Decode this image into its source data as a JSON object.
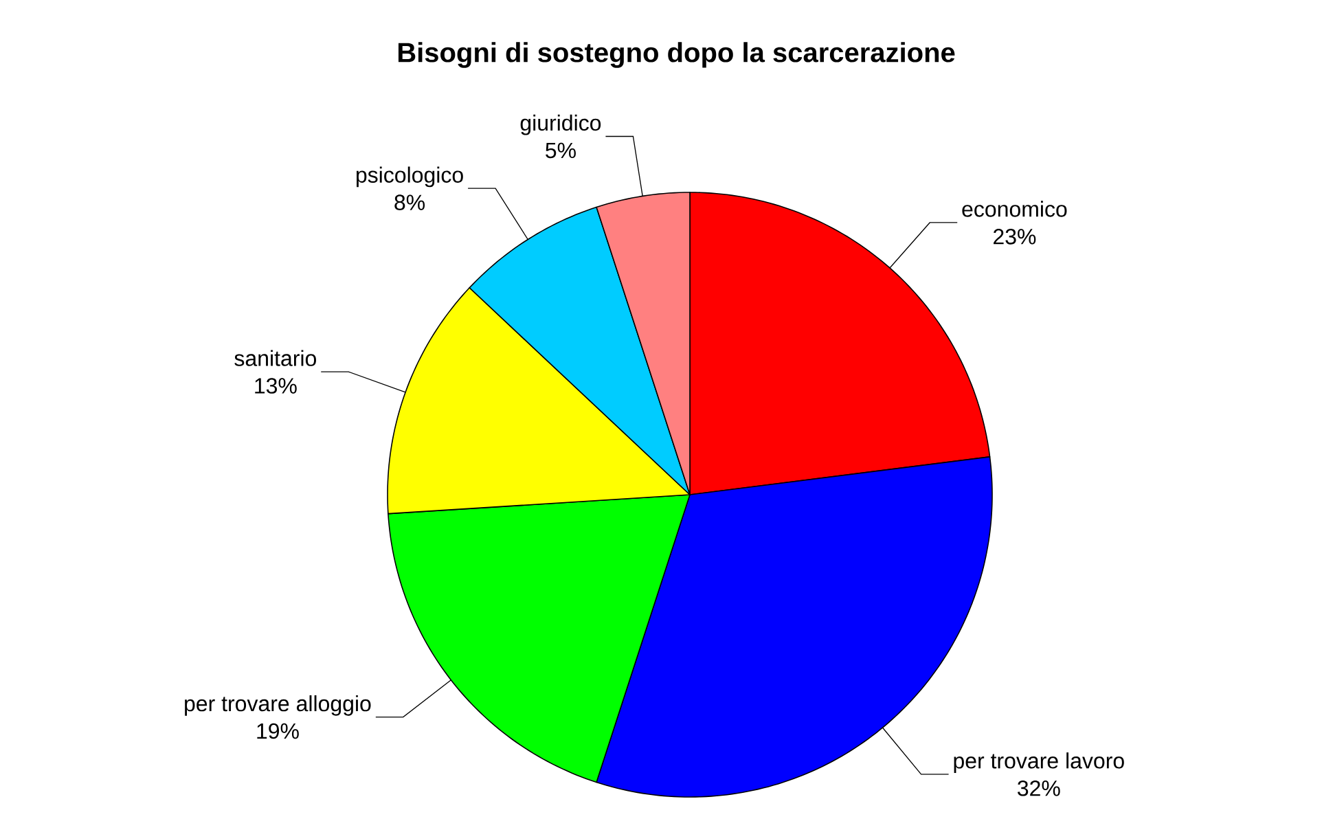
{
  "chart_data": {
    "type": "pie",
    "title": "Bisogni di sostegno dopo la scarcerazione",
    "categories": [
      "economico",
      "per trovare lavoro",
      "per trovare alloggio",
      "sanitario",
      "psicologico",
      "giuridico"
    ],
    "values": [
      23,
      32,
      19,
      13,
      8,
      5
    ],
    "value_labels": [
      "23%",
      "32%",
      "19%",
      "13%",
      "8%",
      "5%"
    ],
    "colors": [
      "#ff0000",
      "#0000ff",
      "#00ff00",
      "#ffff00",
      "#00ccff",
      "#ff8080"
    ]
  }
}
